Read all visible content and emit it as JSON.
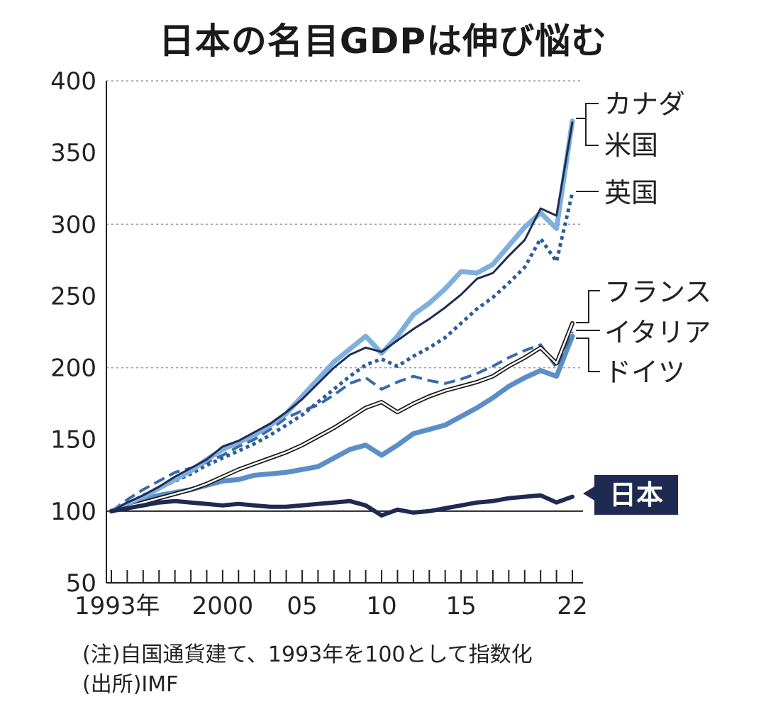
{
  "chart_data": {
    "type": "line",
    "title": "日本の名目GDPは伸び悩む",
    "xlabel": "",
    "ylabel": "",
    "ylim": [
      50,
      400
    ],
    "yticks": [
      50,
      100,
      150,
      200,
      250,
      300,
      350,
      400
    ],
    "xlim": [
      1993,
      2022
    ],
    "x_tick_labels": [
      {
        "year": 1993,
        "label": "1993年"
      },
      {
        "year": 2000,
        "label": "2000"
      },
      {
        "year": 2005,
        "label": "05"
      },
      {
        "year": 2010,
        "label": "10"
      },
      {
        "year": 2015,
        "label": "15"
      },
      {
        "year": 2022,
        "label": "22"
      }
    ],
    "grid": "horizontal dotted at 200, 300, 400",
    "x": [
      1993,
      1994,
      1995,
      1996,
      1997,
      1998,
      1999,
      2000,
      2001,
      2002,
      2003,
      2004,
      2005,
      2006,
      2007,
      2008,
      2009,
      2010,
      2011,
      2012,
      2013,
      2014,
      2015,
      2016,
      2017,
      2018,
      2019,
      2020,
      2021,
      2022
    ],
    "series": [
      {
        "name": "カナダ",
        "color": "#7fb0dd",
        "style": "thick-solid",
        "values": [
          100,
          105,
          110,
          116,
          122,
          128,
          136,
          143,
          148,
          153,
          160,
          168,
          180,
          192,
          204,
          213,
          222,
          210,
          222,
          237,
          245,
          255,
          267,
          266,
          272,
          285,
          298,
          308,
          297,
          372
        ]
      },
      {
        "name": "米国",
        "color": "#1f2d55",
        "style": "thin-solid",
        "values": [
          100,
          106,
          111,
          117,
          124,
          130,
          136,
          145,
          149,
          155,
          161,
          169,
          178,
          189,
          200,
          209,
          214,
          211,
          219,
          227,
          234,
          242,
          251,
          262,
          266,
          278,
          289,
          311,
          306,
          371
        ]
      },
      {
        "name": "英国",
        "color": "#2e5c9a",
        "style": "dotted",
        "values": [
          100,
          105,
          111,
          116,
          121,
          126,
          132,
          137,
          142,
          147,
          153,
          160,
          167,
          176,
          185,
          194,
          202,
          206,
          201,
          208,
          214,
          221,
          231,
          241,
          249,
          259,
          270,
          290,
          274,
          322
        ]
      },
      {
        "name": "フランス",
        "color": "#1a1a1a",
        "style": "double-line",
        "values": [
          100,
          103,
          106,
          109,
          112,
          115,
          119,
          124,
          129,
          133,
          137,
          141,
          146,
          152,
          158,
          165,
          172,
          176,
          169,
          175,
          180,
          184,
          187,
          190,
          194,
          201,
          207,
          214,
          203,
          231
        ]
      },
      {
        "name": "イタリア",
        "color": "#3a6aa8",
        "style": "dashed",
        "values": [
          100,
          108,
          115,
          121,
          127,
          130,
          134,
          139,
          145,
          150,
          157,
          165,
          170,
          174,
          181,
          189,
          193,
          185,
          190,
          194,
          191,
          189,
          192,
          196,
          201,
          207,
          212,
          216,
          200,
          225
        ]
      },
      {
        "name": "ドイツ",
        "color": "#5b8ec7",
        "style": "thick-solid",
        "values": [
          100,
          104,
          108,
          111,
          113,
          115,
          118,
          121,
          122,
          125,
          126,
          127,
          129,
          131,
          137,
          143,
          146,
          139,
          146,
          154,
          157,
          160,
          166,
          172,
          179,
          187,
          193,
          198,
          194,
          222
        ]
      },
      {
        "name": "日本",
        "color": "#1f2a52",
        "style": "thick-solid",
        "values": [
          100,
          102,
          104,
          106,
          107,
          106,
          105,
          104,
          105,
          104,
          103,
          103,
          104,
          105,
          106,
          107,
          104,
          97,
          101,
          99,
          100,
          102,
          104,
          106,
          107,
          109,
          110,
          111,
          106,
          110
        ]
      }
    ],
    "note": "(注)自国通貨建て、1993年を100として指数化",
    "source": "(出所)IMF"
  }
}
